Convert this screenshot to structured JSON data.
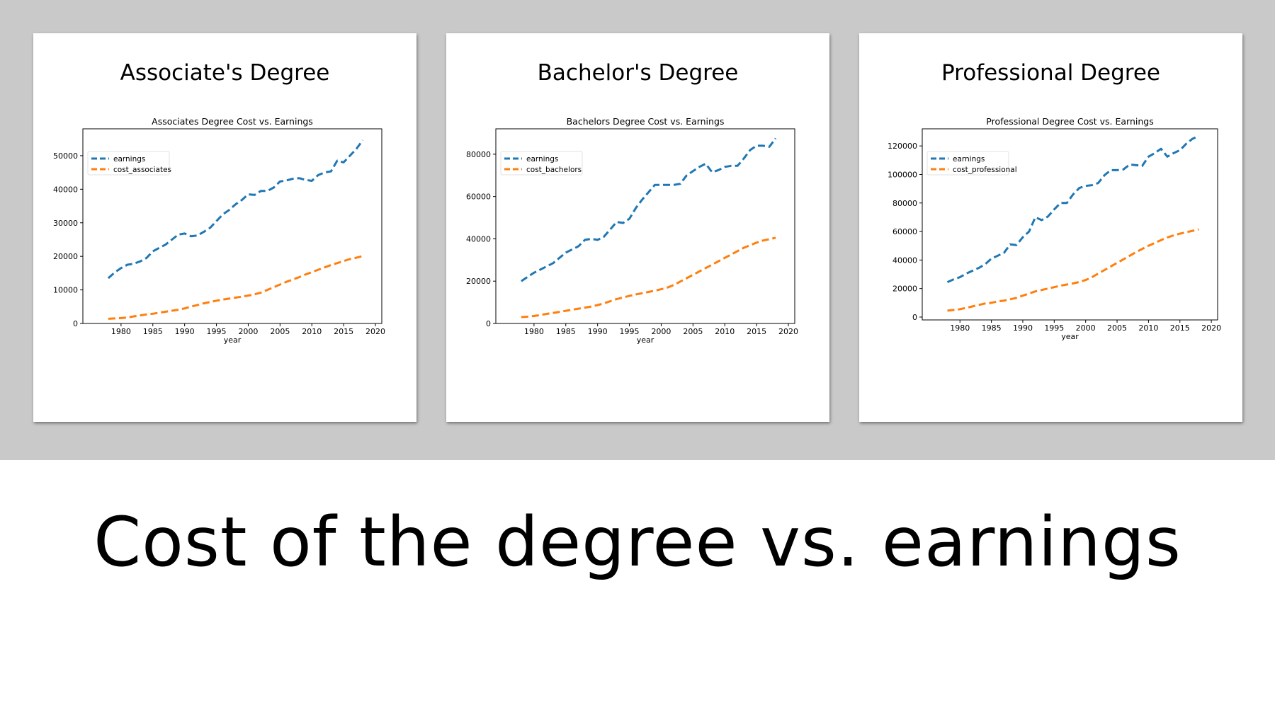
{
  "slide": {
    "title": "Cost of the degree vs. earnings",
    "background_band_color": "#c8c9c8"
  },
  "panels": [
    {
      "title": "Associate's Degree"
    },
    {
      "title": "Bachelor's Degree"
    },
    {
      "title": "Professional Degree"
    }
  ],
  "chart_data": [
    {
      "type": "line",
      "title": "Associates Degree Cost vs. Earnings",
      "xlabel": "year",
      "ylabel": "",
      "xlim": [
        1974,
        2021
      ],
      "ylim": [
        0,
        58000
      ],
      "xticks": [
        1980,
        1985,
        1990,
        1995,
        2000,
        2005,
        2010,
        2015,
        2020
      ],
      "yticks": [
        0,
        10000,
        20000,
        30000,
        40000,
        50000
      ],
      "legend": "upper-left",
      "grid": false,
      "x": [
        1978,
        1979,
        1980,
        1981,
        1982,
        1983,
        1984,
        1985,
        1986,
        1987,
        1988,
        1989,
        1990,
        1991,
        1992,
        1993,
        1994,
        1995,
        1996,
        1997,
        1998,
        1999,
        2000,
        2001,
        2002,
        2003,
        2004,
        2005,
        2006,
        2007,
        2008,
        2009,
        2010,
        2011,
        2012,
        2013,
        2014,
        2015,
        2016,
        2017,
        2018
      ],
      "series": [
        {
          "name": "earnings",
          "color": "#1f77b4",
          "values": [
            13500,
            15200,
            16500,
            17500,
            17800,
            18500,
            19500,
            21500,
            22500,
            23500,
            25000,
            26500,
            26800,
            26000,
            26200,
            27300,
            28500,
            30500,
            32500,
            33800,
            35500,
            36800,
            38500,
            38300,
            39500,
            39500,
            40500,
            42300,
            42600,
            43100,
            43300,
            42800,
            42500,
            44200,
            45000,
            45300,
            48500,
            48000,
            50000,
            52000,
            54600
          ]
        },
        {
          "name": "cost_associates",
          "color": "#ff7f0e",
          "values": [
            1400,
            1500,
            1600,
            1800,
            2100,
            2400,
            2700,
            2900,
            3200,
            3500,
            3800,
            4100,
            4500,
            5000,
            5500,
            6000,
            6400,
            6800,
            7100,
            7400,
            7700,
            8000,
            8300,
            8700,
            9200,
            10000,
            10800,
            11600,
            12400,
            13100,
            13800,
            14600,
            15300,
            16000,
            16700,
            17400,
            18000,
            18600,
            19200,
            19600,
            20100
          ]
        }
      ]
    },
    {
      "type": "line",
      "title": "Bachelors Degree Cost vs. Earnings",
      "xlabel": "year",
      "ylabel": "",
      "xlim": [
        1974,
        2021
      ],
      "ylim": [
        0,
        92000
      ],
      "xticks": [
        1980,
        1985,
        1990,
        1995,
        2000,
        2005,
        2010,
        2015,
        2020
      ],
      "yticks": [
        0,
        20000,
        40000,
        60000,
        80000
      ],
      "legend": "upper-left",
      "grid": false,
      "x": [
        1978,
        1979,
        1980,
        1981,
        1982,
        1983,
        1984,
        1985,
        1986,
        1987,
        1988,
        1989,
        1990,
        1991,
        1992,
        1993,
        1994,
        1995,
        1996,
        1997,
        1998,
        1999,
        2000,
        2001,
        2002,
        2003,
        2004,
        2005,
        2006,
        2007,
        2008,
        2009,
        2010,
        2011,
        2012,
        2013,
        2014,
        2015,
        2016,
        2017,
        2018
      ],
      "series": [
        {
          "name": "earnings",
          "color": "#1f77b4",
          "values": [
            20000,
            22000,
            24000,
            25500,
            27000,
            28500,
            31000,
            33500,
            35000,
            36500,
            39500,
            40000,
            39500,
            41000,
            44500,
            48000,
            47500,
            49500,
            54500,
            58500,
            62000,
            65500,
            65500,
            65500,
            65500,
            66000,
            70000,
            72000,
            74000,
            75500,
            71500,
            72500,
            74000,
            74500,
            74500,
            78000,
            82000,
            84000,
            84000,
            83500,
            87500
          ]
        },
        {
          "name": "cost_bachelors",
          "color": "#ff7f0e",
          "values": [
            3000,
            3200,
            3500,
            4000,
            4500,
            5000,
            5500,
            6000,
            6500,
            7000,
            7500,
            8000,
            8700,
            9500,
            10500,
            11500,
            12300,
            13000,
            13700,
            14300,
            14900,
            15500,
            16200,
            17000,
            18200,
            19800,
            21400,
            23000,
            24600,
            26200,
            27800,
            29400,
            31000,
            32600,
            34200,
            35800,
            37000,
            38200,
            39200,
            39800,
            40500
          ]
        }
      ]
    },
    {
      "type": "line",
      "title": "Professional Degree Cost vs. Earnings",
      "xlabel": "year",
      "ylabel": "",
      "xlim": [
        1974,
        2021
      ],
      "ylim": [
        -2000,
        132000
      ],
      "xticks": [
        1980,
        1985,
        1990,
        1995,
        2000,
        2005,
        2010,
        2015,
        2020
      ],
      "yticks": [
        0,
        20000,
        40000,
        60000,
        80000,
        100000,
        120000
      ],
      "legend": "upper-left",
      "grid": false,
      "x": [
        1978,
        1979,
        1980,
        1981,
        1982,
        1983,
        1984,
        1985,
        1986,
        1987,
        1988,
        1989,
        1990,
        1991,
        1992,
        1993,
        1994,
        1995,
        1996,
        1997,
        1998,
        1999,
        2000,
        2001,
        2002,
        2003,
        2004,
        2005,
        2006,
        2007,
        2008,
        2009,
        2010,
        2011,
        2012,
        2013,
        2014,
        2015,
        2016,
        2017,
        2018
      ],
      "series": [
        {
          "name": "earnings",
          "color": "#1f77b4",
          "values": [
            24500,
            26500,
            28000,
            30500,
            32500,
            34500,
            37000,
            41000,
            43000,
            45000,
            51000,
            50500,
            56000,
            60000,
            70000,
            68000,
            70500,
            75500,
            80000,
            80000,
            86000,
            90500,
            92000,
            92500,
            94000,
            99500,
            103000,
            103000,
            103500,
            107000,
            106500,
            106000,
            112500,
            115000,
            118000,
            112500,
            115000,
            117000,
            121500,
            125000,
            127000
          ]
        },
        {
          "name": "cost_professional",
          "color": "#ff7f0e",
          "values": [
            4500,
            5000,
            5500,
            6500,
            7500,
            8500,
            9500,
            10000,
            11000,
            11500,
            12500,
            13500,
            15000,
            16500,
            18000,
            19000,
            20000,
            21000,
            22000,
            22800,
            23600,
            24600,
            26000,
            28000,
            30500,
            33000,
            35500,
            38000,
            40500,
            43000,
            45500,
            47800,
            50000,
            52000,
            54000,
            55800,
            57300,
            58500,
            59500,
            60500,
            61500
          ]
        }
      ]
    }
  ]
}
